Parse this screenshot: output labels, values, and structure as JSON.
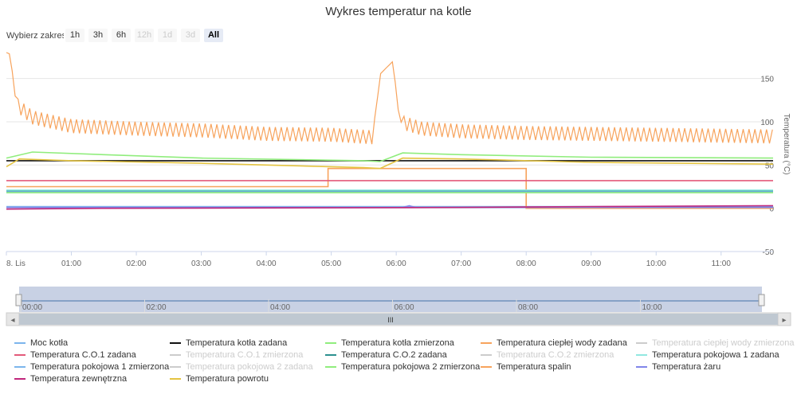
{
  "title": "Wykres temperatur na kotle",
  "range_selector": {
    "label": "Wybierz zakres",
    "buttons": [
      {
        "label": "1h",
        "state": "enabled"
      },
      {
        "label": "3h",
        "state": "enabled"
      },
      {
        "label": "6h",
        "state": "enabled"
      },
      {
        "label": "12h",
        "state": "disabled"
      },
      {
        "label": "1d",
        "state": "disabled"
      },
      {
        "label": "3d",
        "state": "disabled"
      },
      {
        "label": "All",
        "state": "active"
      }
    ]
  },
  "chart_data": {
    "type": "line",
    "title": "Wykres temperatur na kotle",
    "xlabel": "",
    "ylabel": "Temperatura (°C)",
    "x_ticks": [
      "8. Lis",
      "01:00",
      "02:00",
      "03:00",
      "04:00",
      "05:00",
      "06:00",
      "07:00",
      "08:00",
      "09:00",
      "10:00",
      "11:00"
    ],
    "xlim_hours": [
      0,
      11.8
    ],
    "y_ticks": [
      150,
      100,
      50,
      0,
      -50
    ],
    "ylim": [
      -50,
      180
    ],
    "navigator_ticks": [
      "00:00",
      "02:00",
      "04:00",
      "06:00",
      "08:00",
      "10:00"
    ],
    "series": [
      {
        "name": "Moc kotła",
        "color": "#7cb5ec",
        "visible": true,
        "points": [
          [
            0,
            2
          ],
          [
            11.8,
            2
          ]
        ]
      },
      {
        "name": "Temperatura kotła zadana",
        "color": "#111111",
        "visible": true,
        "points": [
          [
            0,
            55
          ],
          [
            11.8,
            55
          ]
        ]
      },
      {
        "name": "Temperatura kotła zmierzona",
        "color": "#90ed7d",
        "visible": true,
        "points": [
          [
            0,
            58
          ],
          [
            0.4,
            65
          ],
          [
            1.5,
            62
          ],
          [
            3,
            58
          ],
          [
            5.5,
            55
          ],
          [
            5.75,
            54
          ],
          [
            6.1,
            64
          ],
          [
            7,
            62
          ],
          [
            9,
            59
          ],
          [
            11.8,
            58
          ]
        ]
      },
      {
        "name": "Temperatura ciepłej wody zadana",
        "color": "#f7a35c",
        "visible": true,
        "points": [
          [
            0,
            25
          ],
          [
            4.95,
            25
          ],
          [
            4.95,
            46
          ],
          [
            8,
            46
          ],
          [
            8,
            0
          ],
          [
            11.8,
            0
          ]
        ]
      },
      {
        "name": "Temperatura ciepłej wody zmierzona",
        "color": "#8085e9",
        "visible": false,
        "points": []
      },
      {
        "name": "Temperatura C.O.1 zadana",
        "color": "#e35a7a",
        "visible": true,
        "points": [
          [
            0,
            32
          ],
          [
            11.8,
            32
          ]
        ]
      },
      {
        "name": "Temperatura C.O.1 zmierzona",
        "color": "#cccccc",
        "visible": false,
        "points": []
      },
      {
        "name": "Temperatura C.O.2 zadana",
        "color": "#2b908f",
        "visible": true,
        "points": [
          [
            0,
            20
          ],
          [
            11.8,
            20
          ]
        ]
      },
      {
        "name": "Temperatura C.O.2 zmierzona",
        "color": "#f45b5b",
        "visible": false,
        "points": []
      },
      {
        "name": "Temperatura pokojowa 1 zadana",
        "color": "#91e8e1",
        "visible": true,
        "points": [
          [
            0,
            21
          ],
          [
            11.8,
            21
          ]
        ]
      },
      {
        "name": "Temperatura pokojowa 1 zmierzona",
        "color": "#7cb5ec",
        "visible": true,
        "points": [
          [
            0,
            19
          ],
          [
            11.8,
            19
          ]
        ]
      },
      {
        "name": "Temperatura pokojowa 2 zadana",
        "color": "#434348",
        "visible": false,
        "points": []
      },
      {
        "name": "Temperatura pokojowa 2 zmierzona",
        "color": "#90ed7d",
        "visible": true,
        "points": [
          [
            0,
            18
          ],
          [
            11.8,
            18
          ]
        ]
      },
      {
        "name": "Temperatura spalin",
        "color": "#f7a35c",
        "visible": true,
        "points": [
          [
            0,
            180
          ],
          [
            0.06,
            178
          ],
          [
            0.15,
            120
          ],
          [
            0.4,
            105
          ],
          [
            1,
            95
          ],
          [
            2,
            92
          ],
          [
            3,
            90
          ],
          [
            4,
            86
          ],
          [
            5,
            85
          ],
          [
            5.65,
            82
          ],
          [
            5.75,
            155
          ],
          [
            5.95,
            170
          ],
          [
            6.05,
            100
          ],
          [
            6.4,
            92
          ],
          [
            7,
            89
          ],
          [
            8,
            87
          ],
          [
            9,
            86
          ],
          [
            10,
            85
          ],
          [
            11.8,
            83
          ]
        ],
        "oscillation_amplitude": 8
      },
      {
        "name": "Temperatura żaru",
        "color": "#8085e9",
        "visible": true,
        "points": [
          [
            0,
            1
          ],
          [
            6.1,
            1
          ],
          [
            6.2,
            3
          ],
          [
            6.3,
            1
          ],
          [
            11.8,
            1
          ]
        ]
      },
      {
        "name": "Temperatura zewnętrzna",
        "color": "#c0267b",
        "visible": true,
        "points": [
          [
            0,
            -1
          ],
          [
            1.5,
            0
          ],
          [
            7,
            1
          ],
          [
            9,
            2
          ],
          [
            11.8,
            3
          ]
        ]
      },
      {
        "name": "Temperatura powrotu",
        "color": "#e4c441",
        "visible": true,
        "points": [
          [
            0,
            48
          ],
          [
            0.2,
            57
          ],
          [
            1,
            55
          ],
          [
            3,
            52
          ],
          [
            5.5,
            47
          ],
          [
            5.75,
            46
          ],
          [
            6.1,
            58
          ],
          [
            7,
            57
          ],
          [
            9,
            53
          ],
          [
            11.8,
            51
          ]
        ]
      }
    ]
  },
  "legend": {
    "items": [
      {
        "label": "Moc kotła",
        "color": "#7cb5ec",
        "hidden": false
      },
      {
        "label": "Temperatura kotła zadana",
        "color": "#111111",
        "hidden": false
      },
      {
        "label": "Temperatura kotła zmierzona",
        "color": "#90ed7d",
        "hidden": false
      },
      {
        "label": "Temperatura ciepłej wody zadana",
        "color": "#f7a35c",
        "hidden": false
      },
      {
        "label": "Temperatura ciepłej wody zmierzona",
        "color": "#cccccc",
        "hidden": true
      },
      {
        "label": "Temperatura C.O.1 zadana",
        "color": "#e35a7a",
        "hidden": false
      },
      {
        "label": "Temperatura C.O.1 zmierzona",
        "color": "#cccccc",
        "hidden": true
      },
      {
        "label": "Temperatura C.O.2 zadana",
        "color": "#2b908f",
        "hidden": false
      },
      {
        "label": "Temperatura C.O.2 zmierzona",
        "color": "#cccccc",
        "hidden": true
      },
      {
        "label": "Temperatura pokojowa 1 zadana",
        "color": "#91e8e1",
        "hidden": false
      },
      {
        "label": "Temperatura pokojowa 1 zmierzona",
        "color": "#7cb5ec",
        "hidden": false
      },
      {
        "label": "Temperatura pokojowa 2 zadana",
        "color": "#cccccc",
        "hidden": true
      },
      {
        "label": "Temperatura pokojowa 2 zmierzona",
        "color": "#90ed7d",
        "hidden": false
      },
      {
        "label": "Temperatura spalin",
        "color": "#f7a35c",
        "hidden": false
      },
      {
        "label": "Temperatura żaru",
        "color": "#8085e9",
        "hidden": false
      },
      {
        "label": "Temperatura zewnętrzna",
        "color": "#c0267b",
        "hidden": false
      },
      {
        "label": "Temperatura powrotu",
        "color": "#e4c441",
        "hidden": false
      }
    ]
  },
  "scrollbar": {
    "thumb_glyph": "III",
    "left_arrow": "◂",
    "right_arrow": "▸"
  }
}
